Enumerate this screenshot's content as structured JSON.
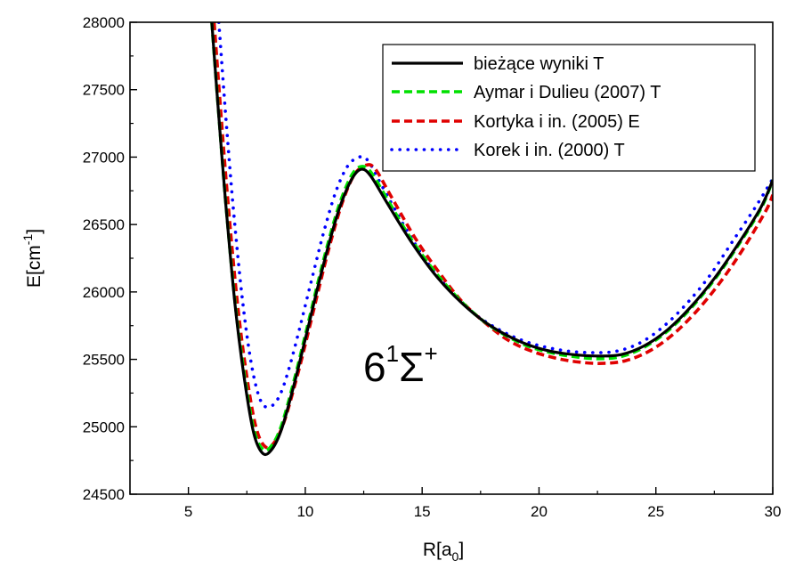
{
  "chart_data": {
    "type": "line",
    "title": "",
    "xlim": [
      2.5,
      30
    ],
    "ylim": [
      24500,
      28000
    ],
    "x_ticks": [
      5,
      10,
      15,
      20,
      25,
      30
    ],
    "y_ticks": [
      24500,
      25000,
      25500,
      26000,
      26500,
      27000,
      27500,
      28000
    ],
    "xlabel": {
      "main": "R[a",
      "sub": "0",
      "close": "]"
    },
    "ylabel": {
      "main": "E[cm",
      "sup": "-1",
      "close": "]"
    },
    "annotation": {
      "main": "6",
      "sup1": "1",
      "sigma": "Σ",
      "sup2": "+"
    },
    "legend_position": "top-right",
    "grid": false,
    "series": [
      {
        "name": "bieżące wyniki T",
        "color": "#000000",
        "dash": "solid",
        "points": [
          [
            6.0,
            28000
          ],
          [
            6.3,
            27300
          ],
          [
            6.6,
            26650
          ],
          [
            7.0,
            25900
          ],
          [
            7.4,
            25350
          ],
          [
            7.8,
            24950
          ],
          [
            8.2,
            24800
          ],
          [
            8.6,
            24840
          ],
          [
            9.0,
            24990
          ],
          [
            9.5,
            25300
          ],
          [
            10.0,
            25650
          ],
          [
            10.5,
            26010
          ],
          [
            11.0,
            26350
          ],
          [
            11.5,
            26640
          ],
          [
            12.0,
            26840
          ],
          [
            12.4,
            26910
          ],
          [
            12.8,
            26860
          ],
          [
            13.5,
            26660
          ],
          [
            14.5,
            26380
          ],
          [
            15.5,
            26140
          ],
          [
            16.5,
            25950
          ],
          [
            17.5,
            25800
          ],
          [
            18.5,
            25690
          ],
          [
            19.5,
            25610
          ],
          [
            20.5,
            25560
          ],
          [
            21.5,
            25535
          ],
          [
            22.5,
            25525
          ],
          [
            23.5,
            25535
          ],
          [
            24.5,
            25600
          ],
          [
            25.5,
            25720
          ],
          [
            26.5,
            25890
          ],
          [
            27.5,
            26100
          ],
          [
            28.5,
            26350
          ],
          [
            29.5,
            26630
          ],
          [
            30.0,
            26830
          ]
        ]
      },
      {
        "name": "Aymar i Dulieu (2007) T",
        "color": "#00e000",
        "dash": "dash",
        "points": [
          [
            6.0,
            28000
          ],
          [
            6.3,
            27310
          ],
          [
            6.6,
            26660
          ],
          [
            7.0,
            25920
          ],
          [
            7.4,
            25380
          ],
          [
            7.8,
            24980
          ],
          [
            8.2,
            24830
          ],
          [
            8.6,
            24870
          ],
          [
            9.0,
            25020
          ],
          [
            9.5,
            25330
          ],
          [
            10.0,
            25680
          ],
          [
            10.5,
            26040
          ],
          [
            11.0,
            26380
          ],
          [
            11.5,
            26670
          ],
          [
            12.0,
            26870
          ],
          [
            12.4,
            26930
          ],
          [
            12.8,
            26890
          ],
          [
            13.5,
            26690
          ],
          [
            14.5,
            26400
          ],
          [
            15.5,
            26160
          ],
          [
            16.5,
            25960
          ],
          [
            17.5,
            25800
          ],
          [
            18.5,
            25685
          ],
          [
            19.5,
            25600
          ],
          [
            20.5,
            25550
          ],
          [
            21.5,
            25520
          ],
          [
            22.5,
            25505
          ],
          [
            23.5,
            25520
          ],
          [
            24.5,
            25590
          ],
          [
            25.5,
            25710
          ],
          [
            26.5,
            25880
          ],
          [
            27.5,
            26090
          ],
          [
            28.5,
            26340
          ],
          [
            29.5,
            26620
          ],
          [
            30.0,
            26830
          ]
        ]
      },
      {
        "name": "Kortyka i in. (2005) E",
        "color": "#e00000",
        "dash": "dash",
        "points": [
          [
            6.1,
            28000
          ],
          [
            6.4,
            27300
          ],
          [
            6.7,
            26650
          ],
          [
            7.1,
            25910
          ],
          [
            7.5,
            25370
          ],
          [
            7.9,
            24990
          ],
          [
            8.3,
            24850
          ],
          [
            8.7,
            24890
          ],
          [
            9.1,
            25040
          ],
          [
            9.6,
            25340
          ],
          [
            10.1,
            25680
          ],
          [
            10.6,
            26040
          ],
          [
            11.1,
            26380
          ],
          [
            11.6,
            26670
          ],
          [
            12.1,
            26870
          ],
          [
            12.6,
            26940
          ],
          [
            13.0,
            26910
          ],
          [
            13.7,
            26700
          ],
          [
            14.7,
            26400
          ],
          [
            15.7,
            26150
          ],
          [
            16.7,
            25930
          ],
          [
            17.7,
            25770
          ],
          [
            18.7,
            25640
          ],
          [
            19.7,
            25560
          ],
          [
            20.7,
            25510
          ],
          [
            21.7,
            25480
          ],
          [
            22.7,
            25470
          ],
          [
            23.7,
            25490
          ],
          [
            24.7,
            25560
          ],
          [
            25.7,
            25680
          ],
          [
            26.7,
            25850
          ],
          [
            27.7,
            26060
          ],
          [
            28.7,
            26310
          ],
          [
            29.7,
            26600
          ],
          [
            30.0,
            26720
          ]
        ]
      },
      {
        "name": "Korek i in. (2000) T",
        "color": "#0000ff",
        "dash": "dot",
        "points": [
          [
            6.3,
            28000
          ],
          [
            6.6,
            27300
          ],
          [
            6.9,
            26660
          ],
          [
            7.3,
            25960
          ],
          [
            7.7,
            25460
          ],
          [
            8.1,
            25190
          ],
          [
            8.5,
            25150
          ],
          [
            8.9,
            25230
          ],
          [
            9.3,
            25430
          ],
          [
            9.8,
            25760
          ],
          [
            10.3,
            26110
          ],
          [
            10.8,
            26450
          ],
          [
            11.3,
            26740
          ],
          [
            11.8,
            26930
          ],
          [
            12.3,
            27000
          ],
          [
            12.7,
            26970
          ],
          [
            13.3,
            26780
          ],
          [
            14.3,
            26470
          ],
          [
            15.3,
            26200
          ],
          [
            16.3,
            25990
          ],
          [
            17.3,
            25830
          ],
          [
            18.3,
            25720
          ],
          [
            19.3,
            25640
          ],
          [
            20.3,
            25590
          ],
          [
            21.3,
            25560
          ],
          [
            22.3,
            25550
          ],
          [
            23.3,
            25560
          ],
          [
            24.3,
            25620
          ],
          [
            25.3,
            25740
          ],
          [
            26.3,
            25910
          ],
          [
            27.3,
            26120
          ],
          [
            28.3,
            26380
          ],
          [
            29.3,
            26640
          ],
          [
            30.0,
            26840
          ]
        ]
      }
    ]
  }
}
